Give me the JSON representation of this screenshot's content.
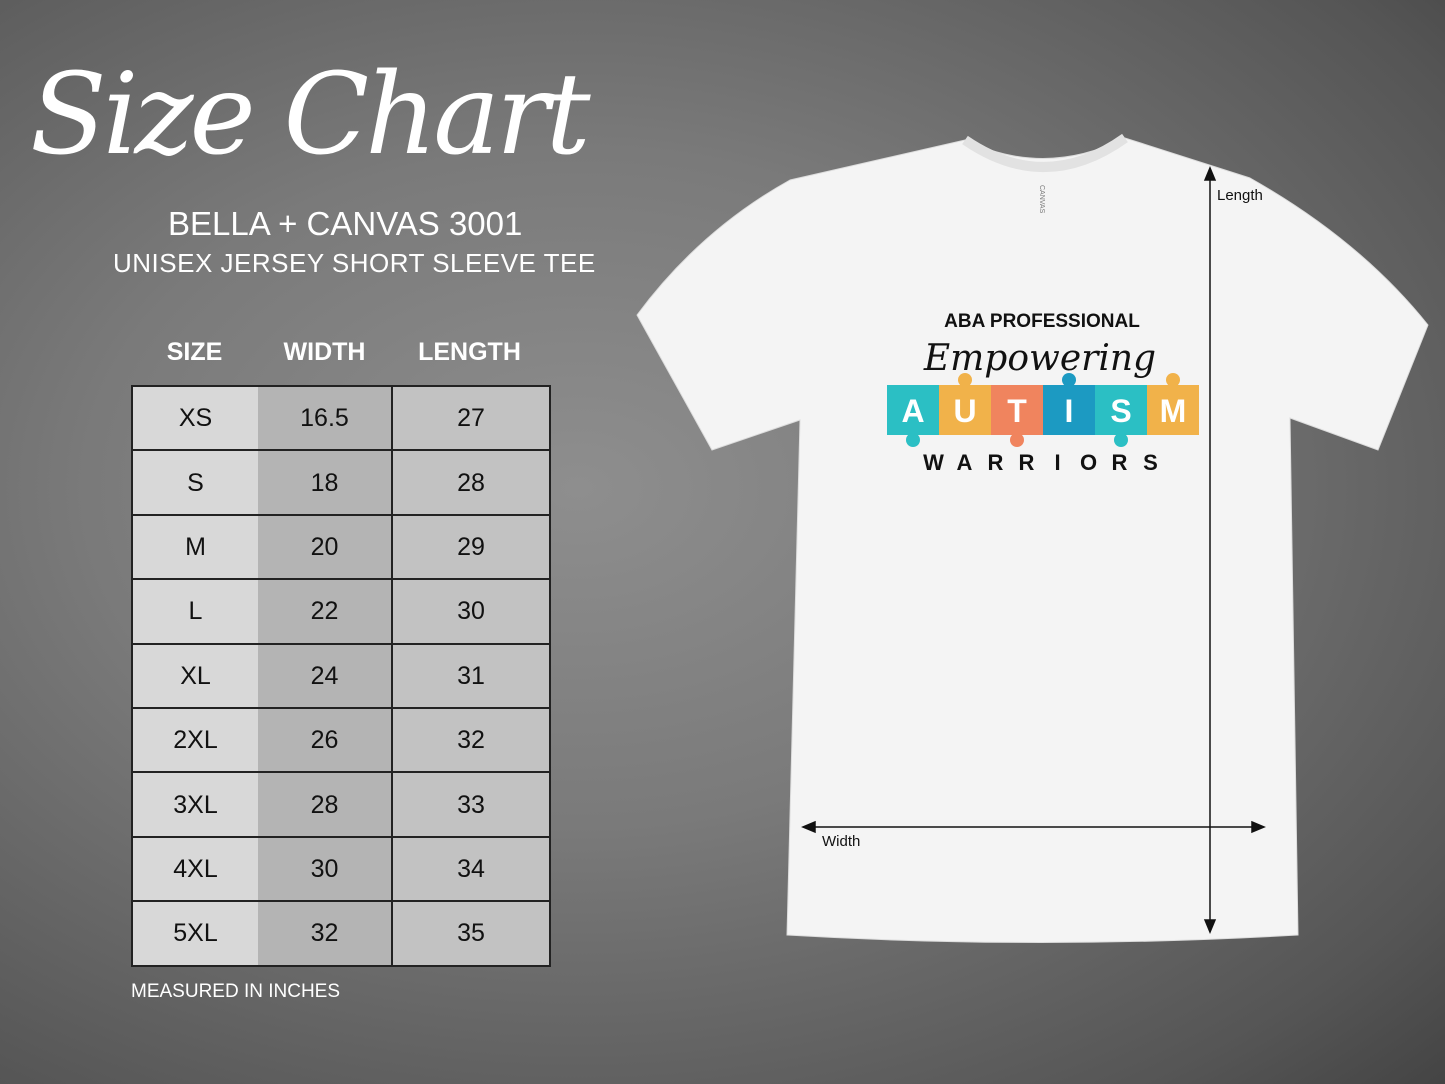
{
  "title": "Size Chart",
  "brand": "BELLA + CANVAS 3001",
  "subtitle": "UNISEX JERSEY SHORT SLEEVE TEE",
  "table": {
    "headers": [
      "SIZE",
      "WIDTH",
      "LENGTH"
    ],
    "rows": [
      [
        "XS",
        "16.5",
        "27"
      ],
      [
        "S",
        "18",
        "28"
      ],
      [
        "M",
        "20",
        "29"
      ],
      [
        "L",
        "22",
        "30"
      ],
      [
        "XL",
        "24",
        "31"
      ],
      [
        "2XL",
        "26",
        "32"
      ],
      [
        "3XL",
        "28",
        "33"
      ],
      [
        "4XL",
        "30",
        "34"
      ],
      [
        "5XL",
        "32",
        "35"
      ]
    ]
  },
  "note": "MEASURED IN INCHES",
  "shirt": {
    "color": "#f4f4f4",
    "tag": "CANVAS",
    "design": {
      "line1": "ABA PROFESSIONAL",
      "line2": "Empowering",
      "letters": [
        "A",
        "U",
        "T",
        "I",
        "S",
        "M"
      ],
      "piece_colors": [
        "#2bbfc4",
        "#f1b24a",
        "#f0845e",
        "#1c9ac2",
        "#2bbfc4",
        "#f1b24a"
      ],
      "line4": "WARRIORS"
    },
    "length_label": "Length",
    "width_label": "Width"
  }
}
